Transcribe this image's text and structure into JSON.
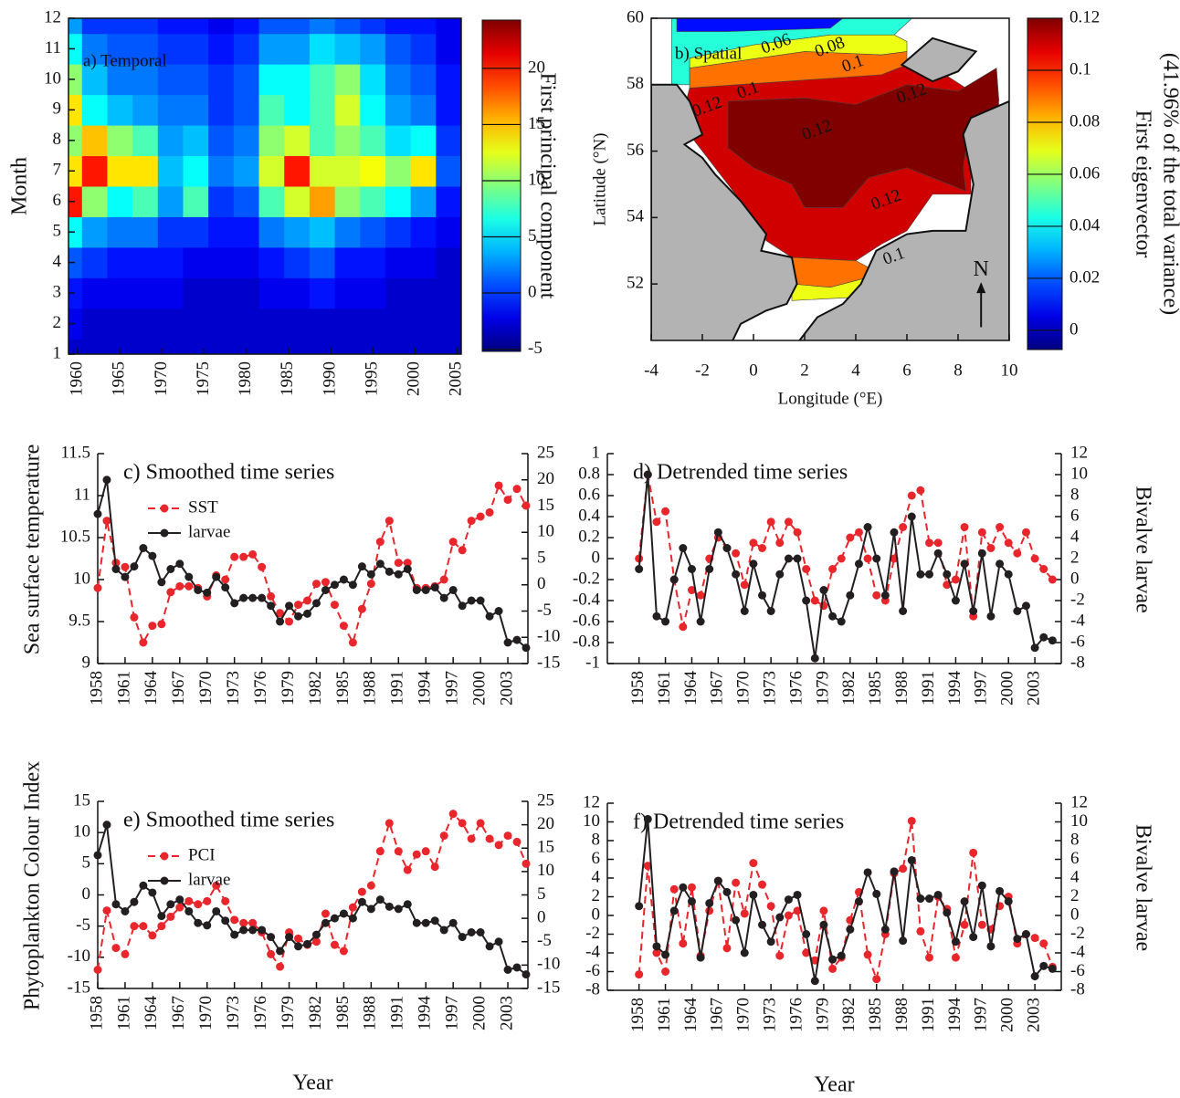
{
  "chart_data": [
    {
      "type": "heatmap",
      "title": "a) Temporal",
      "ylabel": "Month",
      "x": [
        1959,
        1962,
        1965,
        1968,
        1971,
        1974,
        1977,
        1980,
        1983,
        1986,
        1989,
        1992,
        1995,
        1998,
        2001,
        2004
      ],
      "y": [
        1,
        2,
        3,
        4,
        5,
        6,
        7,
        8,
        9,
        10,
        11,
        12
      ],
      "z": [
        [
          -3,
          -3,
          -3,
          -3,
          -3,
          -3,
          -3,
          -3,
          -3,
          -3,
          -3,
          -3,
          -3,
          -3,
          -3,
          -3
        ],
        [
          -2,
          -3,
          -3,
          -3,
          -3,
          -3,
          -3,
          -3,
          -3,
          -3,
          -3,
          -3,
          -3,
          -3,
          -3,
          -3
        ],
        [
          -1,
          -2,
          -2,
          -2,
          -2,
          -3,
          -3,
          -3,
          -2,
          -2,
          -1,
          -2,
          -2,
          -3,
          -3,
          -3
        ],
        [
          1,
          0,
          -1,
          -1,
          -1,
          -2,
          -2,
          -2,
          -1,
          0,
          1,
          -1,
          -1,
          -2,
          -2,
          -3
        ],
        [
          6,
          3,
          2,
          2,
          0,
          0,
          -1,
          -1,
          2,
          3,
          4,
          2,
          1,
          0,
          -1,
          -2
        ],
        [
          20,
          10,
          6,
          8,
          3,
          8,
          0,
          1,
          8,
          12,
          16,
          10,
          8,
          6,
          3,
          -1
        ],
        [
          14,
          20,
          14,
          14,
          4,
          6,
          2,
          3,
          12,
          20,
          12,
          12,
          13,
          10,
          14,
          1
        ],
        [
          10,
          15,
          10,
          8,
          3,
          4,
          1,
          2,
          10,
          12,
          8,
          10,
          8,
          5,
          6,
          0
        ],
        [
          14,
          6,
          4,
          3,
          2,
          2,
          0,
          1,
          8,
          6,
          8,
          12,
          6,
          3,
          2,
          -1
        ],
        [
          10,
          4,
          2,
          2,
          1,
          1,
          0,
          1,
          6,
          6,
          8,
          10,
          5,
          2,
          1,
          -1
        ],
        [
          6,
          2,
          1,
          1,
          0,
          0,
          -1,
          0,
          3,
          3,
          5,
          4,
          3,
          1,
          0,
          -2
        ],
        [
          3,
          0,
          0,
          0,
          -1,
          -1,
          -2,
          -1,
          1,
          1,
          2,
          1,
          0,
          -1,
          -1,
          -2
        ]
      ],
      "xlim": [
        1958.9,
        2005.5
      ],
      "xticks": [
        1960,
        1965,
        1970,
        1975,
        1980,
        1985,
        1990,
        1995,
        2000,
        2005
      ],
      "ylim": [
        1,
        12
      ],
      "yticks": [
        1,
        2,
        3,
        4,
        5,
        6,
        7,
        8,
        9,
        10,
        11,
        12
      ],
      "colormap": "jet",
      "colorbar": {
        "label": [
          "First principal component"
        ],
        "clim": [
          -5.2,
          24.3
        ],
        "ticks": [
          -5,
          0,
          5,
          10,
          15,
          20
        ]
      }
    },
    {
      "type": "contour",
      "title": "b) Spatial",
      "xlabel": "Longitude (°E)",
      "ylabel": "Latitude (°N)",
      "xlim": [
        -4,
        10
      ],
      "xticks": [
        -4,
        -2,
        0,
        2,
        4,
        6,
        8,
        10
      ],
      "ylim": [
        50.3,
        60
      ],
      "yticks": [
        52,
        54,
        56,
        58,
        60
      ],
      "fill_levels": [
        0.01,
        0.045,
        0.07,
        0.09,
        0.11,
        0.125
      ],
      "contour_labels": [
        0.06,
        0.08,
        0.1,
        0.1,
        0.12,
        0.12,
        0.12,
        0.12,
        0.1
      ],
      "north_label": "N",
      "colormap": "jet",
      "colorbar": {
        "label": [
          "First eigenvector",
          "(41.96% of the total variance)"
        ],
        "clim": [
          -0.0074,
          0.12
        ],
        "ticks": [
          0,
          0.02,
          0.04,
          0.06,
          0.08,
          0.1,
          0.12
        ]
      }
    },
    {
      "type": "line",
      "title": "c) Smoothed time series",
      "ylabel": "Sea surface temperature",
      "x": [
        1958,
        1959,
        1960,
        1961,
        1962,
        1963,
        1964,
        1965,
        1966,
        1967,
        1968,
        1969,
        1970,
        1971,
        1972,
        1973,
        1974,
        1975,
        1976,
        1977,
        1978,
        1979,
        1980,
        1981,
        1982,
        1983,
        1984,
        1985,
        1986,
        1987,
        1988,
        1989,
        1990,
        1991,
        1992,
        1993,
        1994,
        1995,
        1996,
        1997,
        1998,
        1999,
        2000,
        2001,
        2002,
        2003,
        2004,
        2005
      ],
      "xlim": [
        1958,
        2005.2
      ],
      "xticks": [
        1958,
        1961,
        1964,
        1967,
        1970,
        1973,
        1976,
        1979,
        1982,
        1985,
        1988,
        1991,
        1994,
        1997,
        2000,
        2003
      ],
      "ylim": [
        9,
        11.5
      ],
      "yticks": [
        9,
        9.5,
        10,
        10.5,
        11,
        11.5
      ],
      "y2lim": [
        -15,
        25
      ],
      "y2ticks": [
        -15,
        -10,
        -5,
        0,
        5,
        10,
        15,
        20,
        25
      ],
      "series": [
        {
          "name": "SST",
          "color": "#e8262b",
          "dashed": true,
          "values": [
            9.9,
            10.7,
            10.2,
            10.15,
            9.55,
            9.25,
            9.45,
            9.47,
            9.85,
            9.92,
            9.92,
            9.9,
            9.8,
            10.05,
            10.0,
            10.27,
            10.27,
            10.3,
            10.15,
            9.8,
            9.6,
            9.5,
            9.7,
            9.75,
            9.95,
            9.97,
            9.7,
            9.45,
            9.25,
            9.65,
            9.95,
            10.45,
            10.7,
            10.2,
            10.2,
            9.9,
            9.9,
            9.92,
            10.0,
            10.45,
            10.35,
            10.7,
            10.75,
            10.8,
            11.12,
            10.95,
            11.08,
            10.88
          ]
        },
        {
          "name": "larvae",
          "color": "#231f20",
          "dashed": false,
          "axis": "y2",
          "values": [
            13.5,
            20,
            3,
            1.5,
            3.5,
            7,
            5.5,
            0.5,
            3,
            4,
            1.5,
            -1,
            -1.5,
            1.5,
            -0.5,
            -3.5,
            -2.5,
            -2.5,
            -2.5,
            -4,
            -7,
            -4,
            -6,
            -5.5,
            -3.5,
            -1,
            0,
            1,
            0,
            3.5,
            2,
            4,
            2.5,
            2,
            3,
            -1,
            -1,
            -0.5,
            -2.5,
            -1,
            -4,
            -3,
            -3,
            -6,
            -5,
            -11,
            -10.5,
            -12
          ]
        }
      ]
    },
    {
      "type": "line",
      "title": "d) Detrended time series",
      "y2label": "Bivalve larvae",
      "x": [
        1958,
        1959,
        1960,
        1961,
        1962,
        1963,
        1964,
        1965,
        1966,
        1967,
        1968,
        1969,
        1970,
        1971,
        1972,
        1973,
        1974,
        1975,
        1976,
        1977,
        1978,
        1979,
        1980,
        1981,
        1982,
        1983,
        1984,
        1985,
        1986,
        1987,
        1988,
        1989,
        1990,
        1991,
        1992,
        1993,
        1994,
        1995,
        1996,
        1997,
        1998,
        1999,
        2000,
        2001,
        2002,
        2003,
        2004,
        2005
      ],
      "xlim": [
        1954.4,
        2006
      ],
      "xticks": [
        1958,
        1961,
        1964,
        1967,
        1970,
        1973,
        1976,
        1979,
        1982,
        1985,
        1988,
        1991,
        1994,
        1997,
        2000,
        2003
      ],
      "ylim": [
        -1,
        1
      ],
      "yticks": [
        -1,
        -0.8,
        -0.6,
        -0.4,
        -0.2,
        0,
        0.2,
        0.4,
        0.6,
        0.8,
        1
      ],
      "y2lim": [
        -8,
        12
      ],
      "y2ticks": [
        -8,
        -6,
        -4,
        -2,
        0,
        2,
        4,
        6,
        8,
        10,
        12
      ],
      "series": [
        {
          "color": "#e8262b",
          "dashed": true,
          "values": [
            0.0,
            0.8,
            0.35,
            0.45,
            -0.2,
            -0.65,
            -0.3,
            -0.35,
            0.0,
            0.2,
            0.1,
            0.05,
            -0.25,
            0.15,
            0.1,
            0.35,
            0.15,
            0.35,
            0.25,
            -0.1,
            -0.4,
            -0.45,
            -0.1,
            0.0,
            0.2,
            0.25,
            0.0,
            -0.35,
            -0.4,
            0.0,
            0.3,
            0.6,
            0.65,
            0.15,
            0.15,
            -0.25,
            -0.2,
            0.3,
            -0.55,
            0.25,
            0.1,
            0.3,
            0.15,
            0.05,
            0.25,
            0.0,
            -0.1,
            -0.2
          ]
        },
        {
          "color": "#231f20",
          "dashed": false,
          "axis": "y2",
          "values": [
            1,
            10,
            -3.5,
            -4,
            0,
            3,
            1,
            -4,
            1,
            4.5,
            3,
            0.5,
            -3,
            1.5,
            -1.5,
            -3,
            0.5,
            2,
            2,
            -2,
            -7.5,
            -1,
            -3.5,
            -4,
            -1.5,
            1.5,
            5,
            2,
            -1.5,
            4.5,
            -3,
            6,
            0.5,
            0.5,
            2.5,
            0.5,
            -2,
            1.5,
            -3,
            2.5,
            -3.5,
            1.5,
            0.5,
            -3,
            -2.5,
            -6.5,
            -5.5,
            -5.8
          ]
        }
      ]
    },
    {
      "type": "line",
      "title": "e) Smoothed time series",
      "ylabel": "Phytoplankton Colour Index",
      "xlabel": "Year",
      "x": [
        1958,
        1959,
        1960,
        1961,
        1962,
        1963,
        1964,
        1965,
        1966,
        1967,
        1968,
        1969,
        1970,
        1971,
        1972,
        1973,
        1974,
        1975,
        1976,
        1977,
        1978,
        1979,
        1980,
        1981,
        1982,
        1983,
        1984,
        1985,
        1986,
        1987,
        1988,
        1989,
        1990,
        1991,
        1992,
        1993,
        1994,
        1995,
        1996,
        1997,
        1998,
        1999,
        2000,
        2001,
        2002,
        2003,
        2004,
        2005
      ],
      "xlim": [
        1958,
        2005.2
      ],
      "xticks": [
        1958,
        1961,
        1964,
        1967,
        1970,
        1973,
        1976,
        1979,
        1982,
        1985,
        1988,
        1991,
        1994,
        1997,
        2000,
        2003
      ],
      "ylim": [
        -15,
        15
      ],
      "yticks": [
        -15,
        -10,
        -5,
        0,
        5,
        10,
        15
      ],
      "y2lim": [
        -15,
        25
      ],
      "y2ticks": [
        -15,
        -10,
        -5,
        0,
        5,
        10,
        15,
        20,
        25
      ],
      "series": [
        {
          "name": "PCI",
          "color": "#e8262b",
          "dashed": true,
          "values": [
            -12,
            -2.5,
            -8.5,
            -9.5,
            -5,
            -5,
            -6.5,
            -5,
            -3.5,
            -2,
            -1,
            -1.5,
            -1,
            1.5,
            -1,
            -4,
            -4.5,
            -4.5,
            -6,
            -9.5,
            -11.5,
            -6,
            -7,
            -8,
            -7.5,
            -3,
            -8,
            -9,
            -2,
            0.5,
            1.5,
            7,
            11.5,
            7,
            4,
            6.5,
            7,
            4.5,
            9.5,
            13,
            11.5,
            9,
            11.5,
            9,
            8,
            9.5,
            8.5,
            5
          ]
        },
        {
          "name": "larvae",
          "color": "#231f20",
          "dashed": false,
          "axis": "y2",
          "values": [
            13.5,
            20,
            3,
            1.5,
            3.5,
            7,
            5.5,
            0.5,
            3,
            4,
            1.5,
            -1,
            -1.5,
            1.5,
            -0.5,
            -3.5,
            -2.5,
            -2.5,
            -2.5,
            -4,
            -7,
            -4,
            -6,
            -5.5,
            -3.5,
            -1,
            0,
            1,
            0,
            3.5,
            2,
            4,
            2.5,
            2,
            3,
            -1,
            -1,
            -0.5,
            -2.5,
            -1,
            -4,
            -3,
            -3,
            -6,
            -5,
            -11,
            -10.5,
            -12
          ]
        }
      ]
    },
    {
      "type": "line",
      "title": "f) Detrended time series",
      "y2label": "Bivalve larvae",
      "xlabel": "Year",
      "x": [
        1958,
        1959,
        1960,
        1961,
        1962,
        1963,
        1964,
        1965,
        1966,
        1967,
        1968,
        1969,
        1970,
        1971,
        1972,
        1973,
        1974,
        1975,
        1976,
        1977,
        1978,
        1979,
        1980,
        1981,
        1982,
        1983,
        1984,
        1985,
        1986,
        1987,
        1988,
        1989,
        1990,
        1991,
        1992,
        1993,
        1994,
        1995,
        1996,
        1997,
        1998,
        1999,
        2000,
        2001,
        2002,
        2003,
        2004,
        2005
      ],
      "xlim": [
        1954.4,
        2006
      ],
      "xticks": [
        1958,
        1961,
        1964,
        1967,
        1970,
        1973,
        1976,
        1979,
        1982,
        1985,
        1988,
        1991,
        1994,
        1997,
        2000,
        2003
      ],
      "ylim": [
        -8,
        12
      ],
      "yticks": [
        -8,
        -6,
        -4,
        -2,
        0,
        2,
        4,
        6,
        8,
        10,
        12
      ],
      "y2lim": [
        -8,
        12
      ],
      "y2ticks": [
        -8,
        -6,
        -4,
        -2,
        0,
        2,
        4,
        6,
        8,
        10,
        12
      ],
      "series": [
        {
          "color": "#e8262b",
          "dashed": true,
          "values": [
            -6.3,
            5.3,
            -4,
            -6,
            2.8,
            -3,
            3,
            -4.3,
            0.5,
            3.7,
            -3.5,
            3.5,
            0.2,
            5.6,
            3.3,
            1,
            -4.3,
            0,
            0.5,
            -4,
            -4.8,
            0.5,
            -5.7,
            -4.5,
            -0.5,
            2.5,
            -4.2,
            -6.8,
            -2,
            4.5,
            5,
            10.1,
            -1.7,
            -4.5,
            2,
            0.7,
            -4.5,
            -1,
            6.7,
            -1,
            -1.5,
            1,
            2,
            -3,
            -2,
            -2.4,
            -3,
            -5.5
          ]
        },
        {
          "color": "#231f20",
          "dashed": false,
          "axis": "y2",
          "values": [
            1,
            10.3,
            -3.3,
            -4.2,
            0.5,
            3,
            1.5,
            -4.5,
            1.3,
            3.7,
            2.5,
            -0.5,
            -4,
            2.2,
            -1,
            -2.8,
            -0.2,
            1.7,
            2.2,
            -2,
            -7,
            -1,
            -4.7,
            -4.3,
            -1.5,
            1.5,
            4.6,
            2.3,
            -1.5,
            4.7,
            -2.7,
            5.9,
            1.8,
            1.8,
            2.2,
            0.3,
            -2.8,
            1.5,
            -2.3,
            3.2,
            -3.3,
            2.6,
            1.5,
            -2.5,
            -2,
            -6.5,
            -5.4,
            -5.7
          ]
        }
      ]
    }
  ]
}
